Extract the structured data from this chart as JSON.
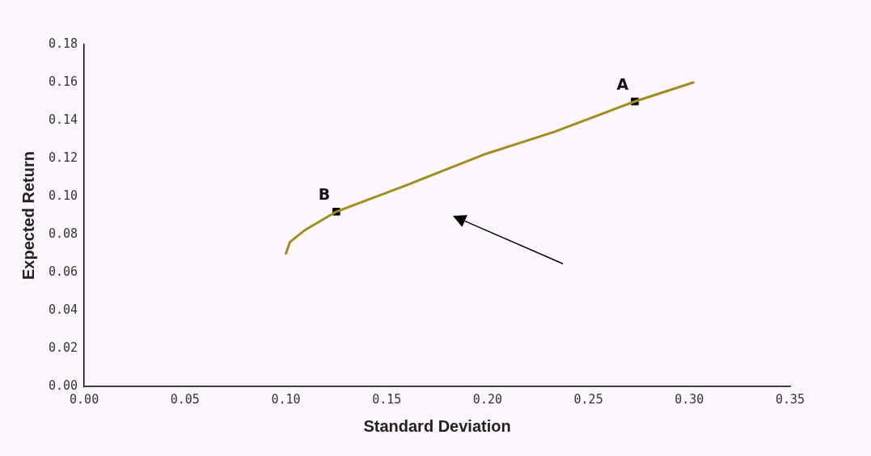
{
  "chart_data": {
    "type": "line",
    "xlabel": "Standard Deviation",
    "ylabel": "Expected Return",
    "series": [
      {
        "type": "line",
        "color": "#a38c1e",
        "marker": "none",
        "x": [
          0.1,
          0.102,
          0.109,
          0.125,
          0.16,
          0.198,
          0.233,
          0.273,
          0.302
        ],
        "values": [
          0.07,
          0.076,
          0.082,
          0.092,
          0.106,
          0.122,
          0.134,
          0.15,
          0.16
        ]
      },
      {
        "type": "scatter",
        "color": "#000000",
        "marker": "square",
        "x": [
          0.273,
          0.125
        ],
        "values": [
          0.15,
          0.092
        ]
      }
    ],
    "annotations": [
      {
        "text": "A",
        "x": 0.273,
        "y": 0.15
      },
      {
        "text": "B",
        "x": 0.125,
        "y": 0.092
      }
    ],
    "xlim": [
      0,
      0.35
    ],
    "xticks": [
      {
        "value": 0,
        "label": "0.00"
      },
      {
        "value": 0.05,
        "label": "0.05"
      },
      {
        "value": 0.1,
        "label": "0.10"
      },
      {
        "value": 0.15,
        "label": "0.15"
      },
      {
        "value": 0.2,
        "label": "0.20"
      },
      {
        "value": 0.25,
        "label": "0.25"
      },
      {
        "value": 0.3,
        "label": "0.30"
      },
      {
        "value": 0.35,
        "label": "0.35"
      }
    ],
    "ylim": [
      0,
      0.18
    ],
    "yticks": [
      {
        "value": 0,
        "label": "0.00"
      },
      {
        "value": 0.02,
        "label": "0.02"
      },
      {
        "value": 0.04,
        "label": "0.04"
      },
      {
        "value": 0.06,
        "label": "0.06"
      },
      {
        "value": 0.08,
        "label": "0.08"
      },
      {
        "value": 0.1,
        "label": "0.10"
      },
      {
        "value": 0.12,
        "label": "0.12"
      },
      {
        "value": 0.14,
        "label": "0.14"
      },
      {
        "value": 0.16,
        "label": "0.16"
      },
      {
        "value": 0.18,
        "label": "0.18"
      }
    ],
    "grid": false,
    "legend": false
  }
}
